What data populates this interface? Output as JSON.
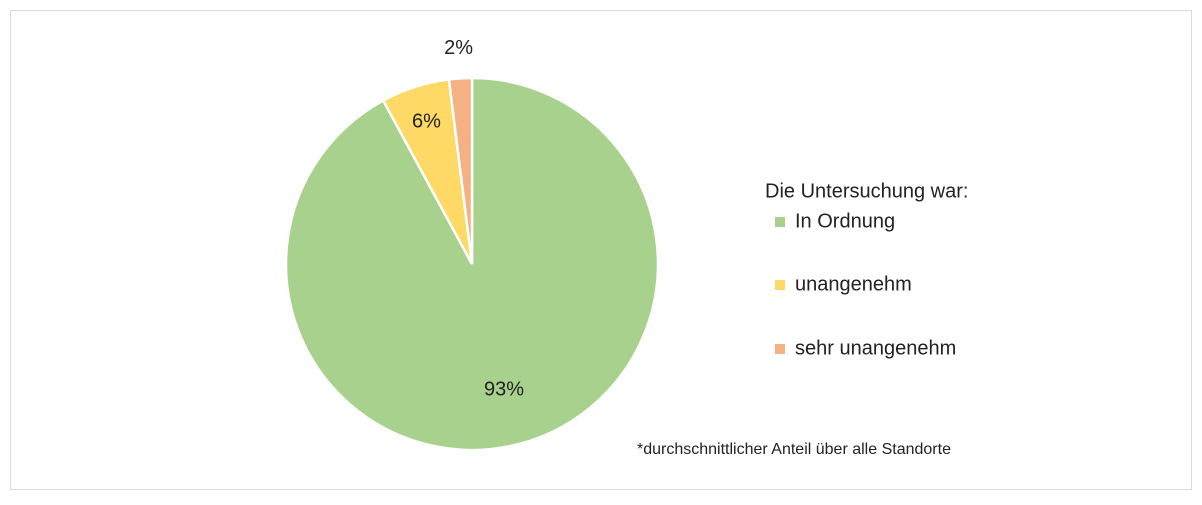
{
  "chart_data": {
    "type": "pie",
    "categories": [
      "In Ordnung",
      "unangenehm",
      "sehr unangenehm"
    ],
    "values": [
      93,
      6,
      2
    ],
    "value_labels": [
      "93%",
      "6%",
      "2%"
    ],
    "colors": [
      "#a9d18e",
      "#ffd966",
      "#f4b183"
    ],
    "legend_title": "Die Untersuchung war:",
    "note": "*durchschnittlicher Anteil über alle Standorte"
  }
}
